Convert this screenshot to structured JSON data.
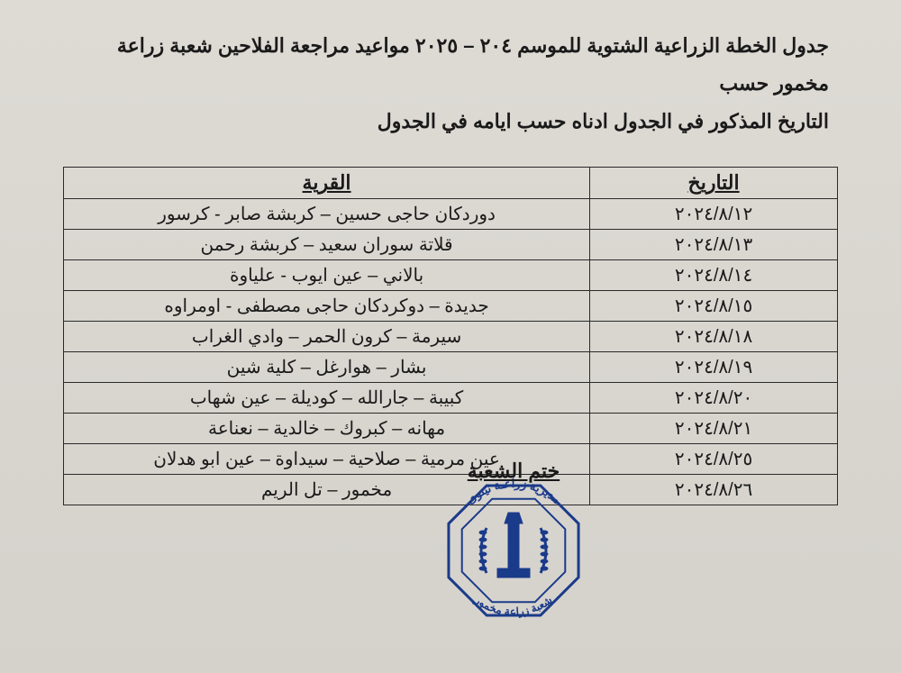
{
  "title_line1": "جدول الخطة الزراعية الشتوية للموسم ٢٠٤ – ٢٠٢٥ مواعيد مراجعة الفلاحين شعبة زراعة مخمور حسب",
  "title_line2": "التاريخ المذكور في الجدول ادناه حسب ايامه في الجدول",
  "table": {
    "headers": {
      "date": "التاريخ",
      "village": "القرية"
    },
    "col_widths_pct": {
      "date": 32,
      "village": 68
    },
    "rows": [
      {
        "date": "٢٠٢٤/٨/١٢",
        "village": "دوردكان حاجى حسين – كربشة صابر - كرسور"
      },
      {
        "date": "٢٠٢٤/٨/١٣",
        "village": "قلاتة سوران سعيد – كربشة رحمن"
      },
      {
        "date": "٢٠٢٤/٨/١٤",
        "village": "بالاني – عين ايوب - علياوة"
      },
      {
        "date": "٢٠٢٤/٨/١٥",
        "village": "جديدة – دوكردكان حاجى مصطفى - اومراوه"
      },
      {
        "date": "٢٠٢٤/٨/١٨",
        "village": "سيرمة – كرون الحمر – وادي الغراب"
      },
      {
        "date": "٢٠٢٤/٨/١٩",
        "village": "بشار – هوارغل – كلية شين"
      },
      {
        "date": "٢٠٢٤/٨/٢٠",
        "village": "كبيبة – جارالله – كوديلة – عين شهاب"
      },
      {
        "date": "٢٠٢٤/٨/٢١",
        "village": "مهانه – كبروك – خالدية – نعناعة"
      },
      {
        "date": "٢٠٢٤/٨/٢٥",
        "village": "عين مرمية – صلاحية – سيداوة – عين ابو هدلان"
      },
      {
        "date": "٢٠٢٤/٨/٢٦",
        "village": "مخمور – تل الريم"
      }
    ]
  },
  "stamp": {
    "label": "ختم الشعبة",
    "outer_text": "مديرية زراعـة نينوى",
    "inner_text": "شعبة زراعة مخمور",
    "color": "#1a3a8a",
    "sides": 8,
    "outer_radius": 78,
    "inner_radius": 62,
    "stroke_width": 3
  },
  "colors": {
    "page_bg": "#d8d6d1",
    "text": "#1a1a1a",
    "border": "#2a2a2a"
  }
}
